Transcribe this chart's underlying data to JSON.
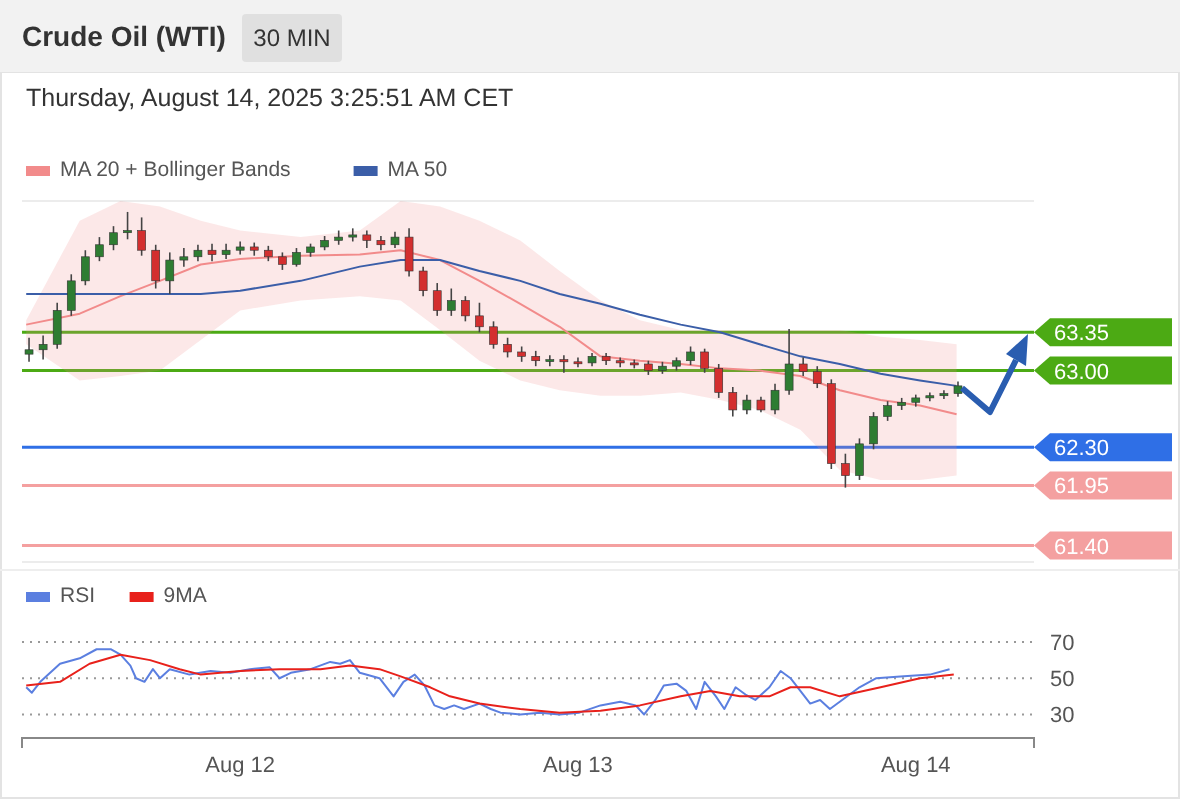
{
  "chart_data": [
    {
      "type": "candlestick",
      "title": "Crude Oil (WTI)",
      "subtitle": "30 MIN",
      "annotations": [
        "Thursday, August 14, 2025 3:25:51 AM CET"
      ],
      "x": [
        "2025-08-11T09:00",
        "2025-08-11T10:00",
        "2025-08-11T11:00",
        "2025-08-11T12:00",
        "2025-08-11T13:00",
        "2025-08-11T14:00",
        "2025-08-11T15:00",
        "2025-08-11T16:00",
        "2025-08-11T17:00",
        "2025-08-11T18:00",
        "2025-08-11T19:00",
        "2025-08-11T20:00",
        "2025-08-11T21:00",
        "2025-08-11T22:00",
        "2025-08-11T23:00",
        "2025-08-12T00:00",
        "2025-08-12T01:00",
        "2025-08-12T02:00",
        "2025-08-12T03:00",
        "2025-08-12T04:00",
        "2025-08-12T05:00",
        "2025-08-12T06:00",
        "2025-08-12T07:00",
        "2025-08-12T08:00",
        "2025-08-12T09:00",
        "2025-08-12T10:00",
        "2025-08-12T11:00",
        "2025-08-12T12:00",
        "2025-08-12T13:00",
        "2025-08-12T14:00",
        "2025-08-12T15:00",
        "2025-08-12T16:00",
        "2025-08-12T17:00",
        "2025-08-12T18:00",
        "2025-08-12T19:00",
        "2025-08-12T20:00",
        "2025-08-12T21:00",
        "2025-08-12T22:00",
        "2025-08-12T23:00",
        "2025-08-13T00:00",
        "2025-08-13T01:00",
        "2025-08-13T02:00",
        "2025-08-13T03:00",
        "2025-08-13T04:00",
        "2025-08-13T05:00",
        "2025-08-13T06:00",
        "2025-08-13T07:00",
        "2025-08-13T08:00",
        "2025-08-13T09:00",
        "2025-08-13T10:00",
        "2025-08-13T11:00",
        "2025-08-13T12:00",
        "2025-08-13T13:00",
        "2025-08-13T14:00",
        "2025-08-13T15:00",
        "2025-08-13T16:00",
        "2025-08-13T17:00",
        "2025-08-13T18:00",
        "2025-08-13T19:00",
        "2025-08-13T20:00",
        "2025-08-13T21:00",
        "2025-08-13T22:00",
        "2025-08-13T23:00",
        "2025-08-14T00:00",
        "2025-08-14T01:00",
        "2025-08-14T02:00",
        "2025-08-14T03:00"
      ],
      "ohlc": [
        [
          63.15,
          63.3,
          63.08,
          63.19
        ],
        [
          63.19,
          63.32,
          63.1,
          63.24
        ],
        [
          63.24,
          63.62,
          63.2,
          63.55
        ],
        [
          63.55,
          63.88,
          63.5,
          63.82
        ],
        [
          63.82,
          64.1,
          63.78,
          64.04
        ],
        [
          64.04,
          64.22,
          64.0,
          64.15
        ],
        [
          64.15,
          64.32,
          64.1,
          64.26
        ],
        [
          64.26,
          64.45,
          64.2,
          64.28
        ],
        [
          64.28,
          64.4,
          64.05,
          64.1
        ],
        [
          64.1,
          64.15,
          63.75,
          63.82
        ],
        [
          63.82,
          64.08,
          63.7,
          64.01
        ],
        [
          64.01,
          64.12,
          63.95,
          64.04
        ],
        [
          64.04,
          64.15,
          64.0,
          64.1
        ],
        [
          64.1,
          64.16,
          64.0,
          64.06
        ],
        [
          64.06,
          64.16,
          64.02,
          64.1
        ],
        [
          64.1,
          64.18,
          64.06,
          64.13
        ],
        [
          64.13,
          64.17,
          64.05,
          64.1
        ],
        [
          64.1,
          64.14,
          64.0,
          64.04
        ],
        [
          64.04,
          64.08,
          63.92,
          63.97
        ],
        [
          63.97,
          64.12,
          63.95,
          64.08
        ],
        [
          64.08,
          64.16,
          64.04,
          64.13
        ],
        [
          64.13,
          64.23,
          64.1,
          64.19
        ],
        [
          64.19,
          64.28,
          64.15,
          64.22
        ],
        [
          64.22,
          64.3,
          64.18,
          64.24
        ],
        [
          64.24,
          64.28,
          64.12,
          64.19
        ],
        [
          64.19,
          64.23,
          64.1,
          64.15
        ],
        [
          64.15,
          64.27,
          64.12,
          64.22
        ],
        [
          64.22,
          64.3,
          63.86,
          63.91
        ],
        [
          63.91,
          63.95,
          63.68,
          63.73
        ],
        [
          63.73,
          63.8,
          63.5,
          63.55
        ],
        [
          63.55,
          63.75,
          63.5,
          63.64
        ],
        [
          63.64,
          63.68,
          63.45,
          63.5
        ],
        [
          63.5,
          63.62,
          63.35,
          63.4
        ],
        [
          63.4,
          63.45,
          63.2,
          63.24
        ],
        [
          63.24,
          63.3,
          63.12,
          63.17
        ],
        [
          63.17,
          63.22,
          63.08,
          63.13
        ],
        [
          63.13,
          63.18,
          63.04,
          63.09
        ],
        [
          63.09,
          63.14,
          63.04,
          63.1
        ],
        [
          63.1,
          63.14,
          62.98,
          63.08
        ],
        [
          63.08,
          63.12,
          63.03,
          63.07
        ],
        [
          63.07,
          63.16,
          63.04,
          63.13
        ],
        [
          63.13,
          63.16,
          63.05,
          63.09
        ],
        [
          63.09,
          63.12,
          63.03,
          63.07
        ],
        [
          63.07,
          63.1,
          63.02,
          63.06
        ],
        [
          63.06,
          63.09,
          62.96,
          63.0
        ],
        [
          63.0,
          63.08,
          62.97,
          63.04
        ],
        [
          63.04,
          63.12,
          63.0,
          63.09
        ],
        [
          63.09,
          63.22,
          63.05,
          63.17
        ],
        [
          63.17,
          63.2,
          62.98,
          63.02
        ],
        [
          63.02,
          63.06,
          62.75,
          62.8
        ],
        [
          62.8,
          62.85,
          62.58,
          62.64
        ],
        [
          62.64,
          62.78,
          62.6,
          62.73
        ],
        [
          62.73,
          62.76,
          62.62,
          62.64
        ],
        [
          62.64,
          62.88,
          62.6,
          62.82
        ],
        [
          62.82,
          63.38,
          62.78,
          63.06
        ],
        [
          63.06,
          63.12,
          62.95,
          62.99
        ],
        [
          62.99,
          63.04,
          62.84,
          62.88
        ],
        [
          62.88,
          62.92,
          62.1,
          62.15
        ],
        [
          62.15,
          62.24,
          61.93,
          62.04
        ],
        [
          62.04,
          62.38,
          62.0,
          62.33
        ],
        [
          62.33,
          62.62,
          62.28,
          62.58
        ],
        [
          62.58,
          62.72,
          62.54,
          62.68
        ],
        [
          62.68,
          62.75,
          62.64,
          62.71
        ],
        [
          62.71,
          62.78,
          62.67,
          62.75
        ],
        [
          62.75,
          62.8,
          62.72,
          62.77
        ],
        [
          62.77,
          62.82,
          62.74,
          62.79
        ],
        [
          62.79,
          62.9,
          62.76,
          62.86
        ]
      ],
      "colors": [
        "#2e7d32",
        "#2e7d32",
        "#2e7d32",
        "#2e7d32",
        "#2e7d32",
        "#2e7d32",
        "#2e7d32",
        "#2e7d32",
        "#d32f2f",
        "#d32f2f",
        "#2e7d32",
        "#2e7d32",
        "#2e7d32",
        "#d32f2f",
        "#2e7d32",
        "#2e7d32",
        "#d32f2f",
        "#d32f2f",
        "#d32f2f",
        "#2e7d32",
        "#2e7d32",
        "#2e7d32",
        "#2e7d32",
        "#2e7d32",
        "#d32f2f",
        "#d32f2f",
        "#2e7d32",
        "#d32f2f",
        "#d32f2f",
        "#d32f2f",
        "#2e7d32",
        "#d32f2f",
        "#d32f2f",
        "#d32f2f",
        "#d32f2f",
        "#d32f2f",
        "#d32f2f",
        "#2e7d32",
        "#d32f2f",
        "#d32f2f",
        "#2e7d32",
        "#d32f2f",
        "#d32f2f",
        "#d32f2f",
        "#d32f2f",
        "#2e7d32",
        "#2e7d32",
        "#2e7d32",
        "#d32f2f",
        "#d32f2f",
        "#d32f2f",
        "#2e7d32",
        "#d32f2f",
        "#2e7d32",
        "#2e7d32",
        "#d32f2f",
        "#d32f2f",
        "#d32f2f",
        "#d32f2f",
        "#2e7d32",
        "#2e7d32",
        "#2e7d32",
        "#2e7d32",
        "#2e7d32",
        "#2e7d32",
        "#2e7d32",
        "#2e7d32"
      ],
      "series": [
        {
          "type": "line",
          "name": "MA 20 + Bollinger Bands",
          "color": "#f28b8b",
          "x": [
            "2025-08-11T08:48",
            "2025-08-11T12:36",
            "2025-08-11T15:30",
            "2025-08-11T18:18",
            "2025-08-11T21:12",
            "2025-08-12T00:00",
            "2025-08-12T04:18",
            "2025-08-12T08:30",
            "2025-08-12T11:24",
            "2025-08-12T14:12",
            "2025-08-12T17:00",
            "2025-08-12T19:54",
            "2025-08-12T22:42",
            "2025-08-13T01:36",
            "2025-08-13T04:24",
            "2025-08-13T07:18",
            "2025-08-13T10:06",
            "2025-08-13T12:54",
            "2025-08-13T15:48",
            "2025-08-13T18:36",
            "2025-08-13T21:30",
            "2025-08-14T00:18",
            "2025-08-14T02:54"
          ],
          "values": [
            63.42,
            63.52,
            63.68,
            63.82,
            63.97,
            64.02,
            64.05,
            64.06,
            64.1,
            64.01,
            63.82,
            63.61,
            63.4,
            63.13,
            63.09,
            63.06,
            63.02,
            63.0,
            62.95,
            62.82,
            62.73,
            62.68,
            62.6
          ],
          "upper": [
            63.46,
            64.37,
            64.55,
            64.5,
            64.37,
            64.28,
            64.22,
            64.28,
            64.55,
            64.5,
            64.37,
            64.19,
            63.91,
            63.64,
            63.46,
            63.37,
            63.37,
            63.37,
            63.37,
            63.37,
            63.31,
            63.28,
            63.24
          ],
          "lower": [
            63.24,
            62.91,
            62.95,
            63.0,
            63.28,
            63.55,
            63.64,
            63.68,
            63.64,
            63.37,
            63.09,
            62.91,
            62.82,
            62.77,
            62.77,
            62.8,
            62.73,
            62.64,
            62.46,
            62.09,
            62.0,
            62.0,
            62.04
          ]
        },
        {
          "type": "line",
          "name": "MA 50",
          "color": "#3b5ea8",
          "x": [
            "2025-08-11T08:48",
            "2025-08-11T15:30",
            "2025-08-11T21:12",
            "2025-08-12T00:00",
            "2025-08-12T04:18",
            "2025-08-12T08:30",
            "2025-08-12T11:24",
            "2025-08-12T14:12",
            "2025-08-12T17:00",
            "2025-08-12T19:54",
            "2025-08-12T22:42",
            "2025-08-13T01:36",
            "2025-08-13T04:24",
            "2025-08-13T07:18",
            "2025-08-13T10:06",
            "2025-08-13T12:54",
            "2025-08-13T15:48",
            "2025-08-13T18:36",
            "2025-08-13T21:30",
            "2025-08-14T00:18",
            "2025-08-14T02:54"
          ],
          "values": [
            63.7,
            63.7,
            63.7,
            63.73,
            63.82,
            63.95,
            64.01,
            64.01,
            63.91,
            63.82,
            63.7,
            63.61,
            63.51,
            63.42,
            63.35,
            63.24,
            63.13,
            63.06,
            62.97,
            62.91,
            62.86
          ]
        }
      ],
      "xlim": [
        "2025-08-11T08:30",
        "2025-08-14T08:24"
      ],
      "legend": "top left",
      "ylim": [
        61.25,
        64.55
      ],
      "yticks": [
        {
          "value": 61.4,
          "label": "61.40"
        },
        61.95,
        {
          "value": 62.3,
          "label": "62.30"
        },
        {
          "value": 63,
          "label": "63.00"
        },
        63.35
      ],
      "ref_lines": [
        {
          "axis": "y",
          "value": 63.35,
          "color": "#4caa14"
        },
        {
          "axis": "y",
          "value": 63.0,
          "color": "#4caa14"
        },
        {
          "axis": "y",
          "value": 62.3,
          "color": "#2f6fe6"
        },
        {
          "axis": "y",
          "value": 61.95,
          "color": "#f4a0a0"
        },
        {
          "axis": "y",
          "value": 61.4,
          "color": "#f4a0a0"
        }
      ]
    },
    {
      "type": "line",
      "series": [
        {
          "name": "RSI",
          "color": "#5b7fe0",
          "x": [
            "2025-08-11T08:48",
            "2025-08-11T09:12",
            "2025-08-11T09:48",
            "2025-08-11T10:30",
            "2025-08-11T11:12",
            "2025-08-11T12:36",
            "2025-08-11T13:48",
            "2025-08-11T14:48",
            "2025-08-11T15:30",
            "2025-08-11T16:12",
            "2025-08-11T16:36",
            "2025-08-11T17:12",
            "2025-08-11T17:48",
            "2025-08-11T18:18",
            "2025-08-11T19:00",
            "2025-08-11T20:24",
            "2025-08-11T21:54",
            "2025-08-11T23:18",
            "2025-08-12T00:42",
            "2025-08-12T02:06",
            "2025-08-12T02:48",
            "2025-08-12T03:36",
            "2025-08-12T05:00",
            "2025-08-12T06:24",
            "2025-08-12T07:06",
            "2025-08-12T07:48",
            "2025-08-12T08:30",
            "2025-08-12T09:54",
            "2025-08-12T10:54",
            "2025-08-12T11:36",
            "2025-08-12T12:24",
            "2025-08-12T13:06",
            "2025-08-12T13:48",
            "2025-08-12T14:30",
            "2025-08-12T15:12",
            "2025-08-12T15:54",
            "2025-08-12T17:00",
            "2025-08-12T17:48",
            "2025-08-12T18:30",
            "2025-08-12T19:54",
            "2025-08-12T21:18",
            "2025-08-12T22:42",
            "2025-08-13T00:06",
            "2025-08-13T01:36",
            "2025-08-13T03:00",
            "2025-08-13T04:06",
            "2025-08-13T04:42",
            "2025-08-13T05:30",
            "2025-08-13T06:06",
            "2025-08-13T07:00",
            "2025-08-13T07:42",
            "2025-08-13T08:24",
            "2025-08-13T09:00",
            "2025-08-13T09:48",
            "2025-08-13T10:24",
            "2025-08-13T11:12",
            "2025-08-13T11:54",
            "2025-08-13T12:36",
            "2025-08-13T13:36",
            "2025-08-13T14:24",
            "2025-08-13T15:06",
            "2025-08-13T15:48",
            "2025-08-13T16:30",
            "2025-08-13T17:12",
            "2025-08-13T17:54",
            "2025-08-13T19:18",
            "2025-08-13T20:00",
            "2025-08-13T21:12",
            "2025-08-13T22:54",
            "2025-08-14T01:00",
            "2025-08-14T02:24"
          ],
          "values": [
            45,
            42,
            48,
            53,
            58,
            61,
            66,
            66,
            63,
            57,
            50,
            48,
            55,
            50,
            55,
            52,
            54,
            53,
            55,
            56,
            50,
            53,
            55,
            59,
            58,
            60,
            53,
            50,
            40,
            48,
            52,
            46,
            35,
            33,
            35,
            33,
            36,
            33,
            31,
            30,
            31,
            30,
            31,
            35,
            37,
            35,
            30,
            38,
            46,
            47,
            43,
            33,
            48,
            40,
            33,
            45,
            41,
            38,
            45,
            54,
            50,
            43,
            36,
            38,
            33,
            41,
            45,
            50,
            51,
            52,
            55
          ]
        },
        {
          "name": "9MA",
          "color": "#e8211b",
          "x": [
            "2025-08-11T08:48",
            "2025-08-11T11:12",
            "2025-08-11T13:18",
            "2025-08-11T15:30",
            "2025-08-11T17:36",
            "2025-08-11T19:42",
            "2025-08-11T21:12",
            "2025-08-12T00:00",
            "2025-08-12T02:48",
            "2025-08-12T05:42",
            "2025-08-12T07:48",
            "2025-08-12T09:54",
            "2025-08-12T11:24",
            "2025-08-12T13:30",
            "2025-08-12T14:54",
            "2025-08-12T17:00",
            "2025-08-12T19:54",
            "2025-08-12T22:42",
            "2025-08-13T01:36",
            "2025-08-13T04:24",
            "2025-08-13T07:18",
            "2025-08-13T09:24",
            "2025-08-13T11:30",
            "2025-08-13T13:36",
            "2025-08-13T15:06",
            "2025-08-13T16:30",
            "2025-08-13T18:36",
            "2025-08-13T21:30",
            "2025-08-14T00:18",
            "2025-08-14T02:42"
          ],
          "values": [
            46,
            48,
            58,
            63,
            60,
            55,
            52,
            54,
            55,
            55,
            57,
            55,
            51,
            45,
            40,
            36,
            33,
            31,
            32,
            35,
            40,
            43,
            40,
            40,
            45,
            45,
            40,
            45,
            50,
            52
          ]
        }
      ],
      "xlim": [
        "2025-08-11T08:30",
        "2025-08-14T08:24"
      ],
      "xticks": [
        {
          "value": "2025-08-12",
          "label": "Aug 12"
        },
        {
          "value": "2025-08-13",
          "label": "Aug 13"
        },
        {
          "value": "2025-08-14",
          "label": "Aug 14"
        }
      ],
      "ylim": [
        17,
        70
      ],
      "yticks": [
        30,
        50,
        70
      ],
      "grid": "y",
      "legend": "top left"
    }
  ]
}
